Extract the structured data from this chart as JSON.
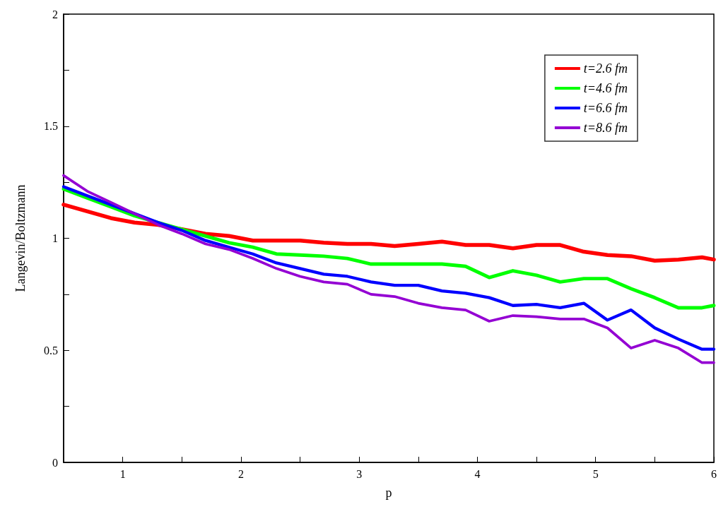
{
  "chart_data": {
    "type": "line",
    "xlabel": "p",
    "ylabel": "Langevin/Boltzmann",
    "x": [
      0.5,
      0.7,
      0.9,
      1.1,
      1.3,
      1.5,
      1.7,
      1.9,
      2.1,
      2.3,
      2.5,
      2.7,
      2.9,
      3.1,
      3.3,
      3.5,
      3.7,
      3.9,
      4.1,
      4.3,
      4.5,
      4.7,
      4.9,
      5.1,
      5.3,
      5.5,
      5.7,
      5.9,
      6.0
    ],
    "series": [
      {
        "name": "t=2.6 fm",
        "color": "#ff0000",
        "values": [
          1.15,
          1.12,
          1.09,
          1.07,
          1.06,
          1.04,
          1.02,
          1.01,
          0.99,
          0.99,
          0.99,
          0.98,
          0.975,
          0.975,
          0.965,
          0.975,
          0.985,
          0.97,
          0.97,
          0.955,
          0.97,
          0.97,
          0.94,
          0.925,
          0.92,
          0.9,
          0.905,
          0.915,
          0.905
        ]
      },
      {
        "name": "t=4.6 fm",
        "color": "#00ff00",
        "values": [
          1.22,
          1.18,
          1.14,
          1.1,
          1.07,
          1.04,
          1.01,
          0.98,
          0.96,
          0.93,
          0.925,
          0.92,
          0.91,
          0.885,
          0.885,
          0.885,
          0.885,
          0.875,
          0.825,
          0.855,
          0.835,
          0.805,
          0.82,
          0.82,
          0.775,
          0.735,
          0.69,
          0.69,
          0.7
        ]
      },
      {
        "name": "t=6.6 fm",
        "color": "#0000ff",
        "values": [
          1.23,
          1.19,
          1.15,
          1.11,
          1.07,
          1.035,
          0.99,
          0.96,
          0.93,
          0.89,
          0.865,
          0.84,
          0.83,
          0.805,
          0.79,
          0.79,
          0.765,
          0.755,
          0.735,
          0.7,
          0.705,
          0.69,
          0.71,
          0.635,
          0.68,
          0.6,
          0.55,
          0.505,
          0.505
        ]
      },
      {
        "name": "t=8.6 fm",
        "color": "#9400d3",
        "values": [
          1.28,
          1.21,
          1.16,
          1.11,
          1.06,
          1.02,
          0.975,
          0.95,
          0.91,
          0.865,
          0.83,
          0.805,
          0.795,
          0.75,
          0.74,
          0.71,
          0.69,
          0.68,
          0.63,
          0.655,
          0.65,
          0.64,
          0.64,
          0.6,
          0.51,
          0.545,
          0.51,
          0.445,
          0.445
        ]
      }
    ],
    "xlim": [
      0.5,
      6
    ],
    "xticks": [
      1,
      {
        "value": 1.5,
        "label": null
      },
      2,
      {
        "value": 2.5,
        "label": null
      },
      3,
      {
        "value": 3.5,
        "label": null
      },
      4,
      {
        "value": 4.5,
        "label": null
      },
      5,
      {
        "value": 5.5,
        "label": null
      },
      6
    ],
    "ylim": [
      0,
      2
    ],
    "yticks": [
      0,
      {
        "value": 0.25,
        "label": null
      },
      0.5,
      {
        "value": 0.75,
        "label": null
      },
      1,
      {
        "value": 1.25,
        "label": null
      },
      1.5,
      {
        "value": 1.75,
        "label": null
      },
      2
    ],
    "grid": false,
    "legend": "top right",
    "marker": "none",
    "line_style": "solid"
  }
}
